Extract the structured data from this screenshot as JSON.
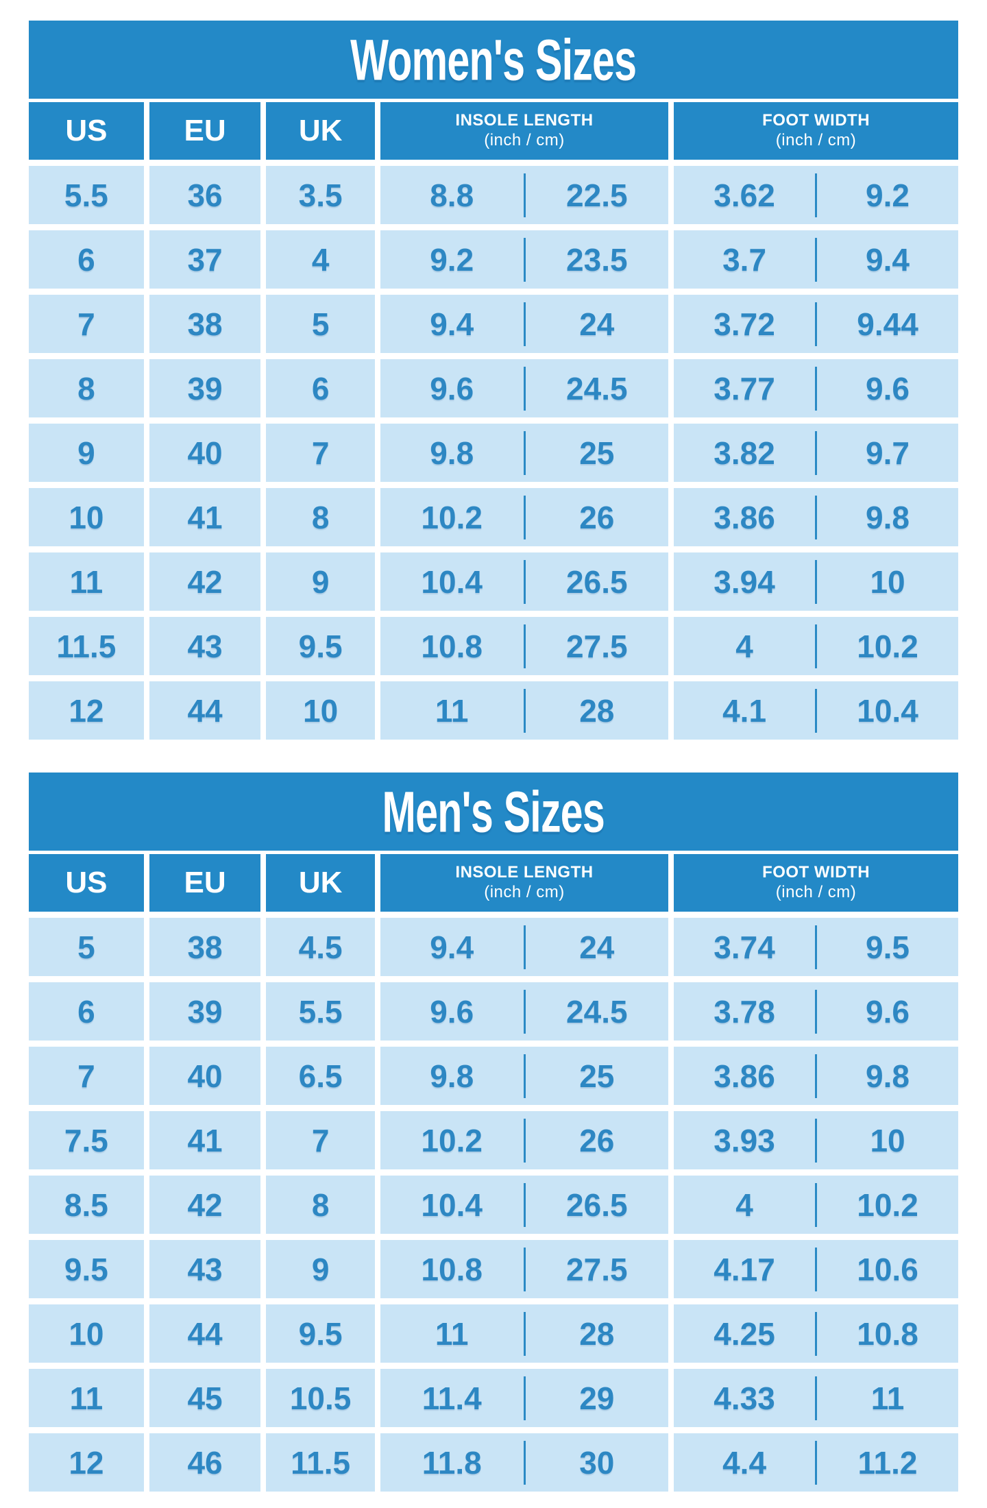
{
  "colors": {
    "page_bg": "#ffffff",
    "header_bg": "#2389c7",
    "cell_bg": "#c9e4f6",
    "cell_text": "#2d87c3",
    "header_text": "#ffffff",
    "divider": "#2a8ac5"
  },
  "chart_data": [
    {
      "id": "womens",
      "type": "table",
      "title": "Women's Sizes",
      "header": {
        "us": "US",
        "eu": "EU",
        "uk": "UK",
        "insole_label": "INSOLE LENGTH",
        "insole_unit": "(inch / cm)",
        "foot_label": "FOOT WIDTH",
        "foot_unit": "(inch / cm)"
      },
      "columns": [
        "US",
        "EU",
        "UK",
        "INSOLE LENGTH inch",
        "INSOLE LENGTH cm",
        "FOOT WIDTH inch",
        "FOOT WIDTH cm"
      ],
      "rows": [
        [
          "5.5",
          "36",
          "3.5",
          "8.8",
          "22.5",
          "3.62",
          "9.2"
        ],
        [
          "6",
          "37",
          "4",
          "9.2",
          "23.5",
          "3.7",
          "9.4"
        ],
        [
          "7",
          "38",
          "5",
          "9.4",
          "24",
          "3.72",
          "9.44"
        ],
        [
          "8",
          "39",
          "6",
          "9.6",
          "24.5",
          "3.77",
          "9.6"
        ],
        [
          "9",
          "40",
          "7",
          "9.8",
          "25",
          "3.82",
          "9.7"
        ],
        [
          "10",
          "41",
          "8",
          "10.2",
          "26",
          "3.86",
          "9.8"
        ],
        [
          "11",
          "42",
          "9",
          "10.4",
          "26.5",
          "3.94",
          "10"
        ],
        [
          "11.5",
          "43",
          "9.5",
          "10.8",
          "27.5",
          "4",
          "10.2"
        ],
        [
          "12",
          "44",
          "10",
          "11",
          "28",
          "4.1",
          "10.4"
        ]
      ]
    },
    {
      "id": "mens",
      "type": "table",
      "title": "Men's Sizes",
      "header": {
        "us": "US",
        "eu": "EU",
        "uk": "UK",
        "insole_label": "INSOLE LENGTH",
        "insole_unit": "(inch / cm)",
        "foot_label": "FOOT WIDTH",
        "foot_unit": "(inch / cm)"
      },
      "columns": [
        "US",
        "EU",
        "UK",
        "INSOLE LENGTH inch",
        "INSOLE LENGTH cm",
        "FOOT WIDTH inch",
        "FOOT WIDTH cm"
      ],
      "rows": [
        [
          "5",
          "38",
          "4.5",
          "9.4",
          "24",
          "3.74",
          "9.5"
        ],
        [
          "6",
          "39",
          "5.5",
          "9.6",
          "24.5",
          "3.78",
          "9.6"
        ],
        [
          "7",
          "40",
          "6.5",
          "9.8",
          "25",
          "3.86",
          "9.8"
        ],
        [
          "7.5",
          "41",
          "7",
          "10.2",
          "26",
          "3.93",
          "10"
        ],
        [
          "8.5",
          "42",
          "8",
          "10.4",
          "26.5",
          "4",
          "10.2"
        ],
        [
          "9.5",
          "43",
          "9",
          "10.8",
          "27.5",
          "4.17",
          "10.6"
        ],
        [
          "10",
          "44",
          "9.5",
          "11",
          "28",
          "4.25",
          "10.8"
        ],
        [
          "11",
          "45",
          "10.5",
          "11.4",
          "29",
          "4.33",
          "11"
        ],
        [
          "12",
          "46",
          "11.5",
          "11.8",
          "30",
          "4.4",
          "11.2"
        ]
      ]
    }
  ]
}
